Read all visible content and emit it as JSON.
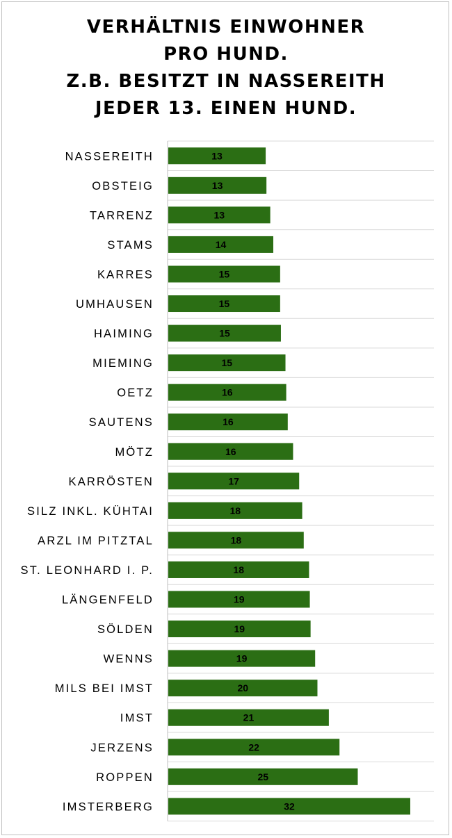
{
  "colors": {
    "bar": "#2b6e14",
    "grid": "#d9d9d9",
    "axis": "#bfbfbf",
    "label": "#000000"
  },
  "chart_data": {
    "type": "bar",
    "orientation": "horizontal",
    "title_lines": [
      "VERHÄLTNIS EINWOHNER",
      "PRO HUND.",
      "Z.B. BESITZT IN NASSEREITH",
      "JEDER 13. EINEN HUND."
    ],
    "categories": [
      "NASSEREITH",
      "OBSTEIG",
      "TARRENZ",
      "STAMS",
      "KARRES",
      "UMHAUSEN",
      "HAIMING",
      "MIEMING",
      "OETZ",
      "SAUTENS",
      "MÖTZ",
      "KARRÖSTEN",
      "SILZ INKL. KÜHTAI",
      "ARZL IM PITZTAL",
      "ST. LEONHARD I. P.",
      "LÄNGENFELD",
      "SÖLDEN",
      "WENNS",
      "MILS BEI IMST",
      "IMST",
      "JERZENS",
      "ROPPEN",
      "IMSTERBERG"
    ],
    "values": [
      12.8,
      12.9,
      13.4,
      13.8,
      14.7,
      14.7,
      14.8,
      15.4,
      15.5,
      15.7,
      16.4,
      17.2,
      17.6,
      17.8,
      18.5,
      18.6,
      18.7,
      19.3,
      19.6,
      21.1,
      22.5,
      24.9,
      31.8
    ],
    "data_labels": [
      "13",
      "13",
      "13",
      "14",
      "15",
      "15",
      "15",
      "15",
      "16",
      "16",
      "16",
      "17",
      "18",
      "18",
      "18",
      "19",
      "19",
      "19",
      "20",
      "21",
      "22",
      "25",
      "32"
    ],
    "xlim": [
      0,
      35
    ],
    "grid": true,
    "legend": "none"
  }
}
